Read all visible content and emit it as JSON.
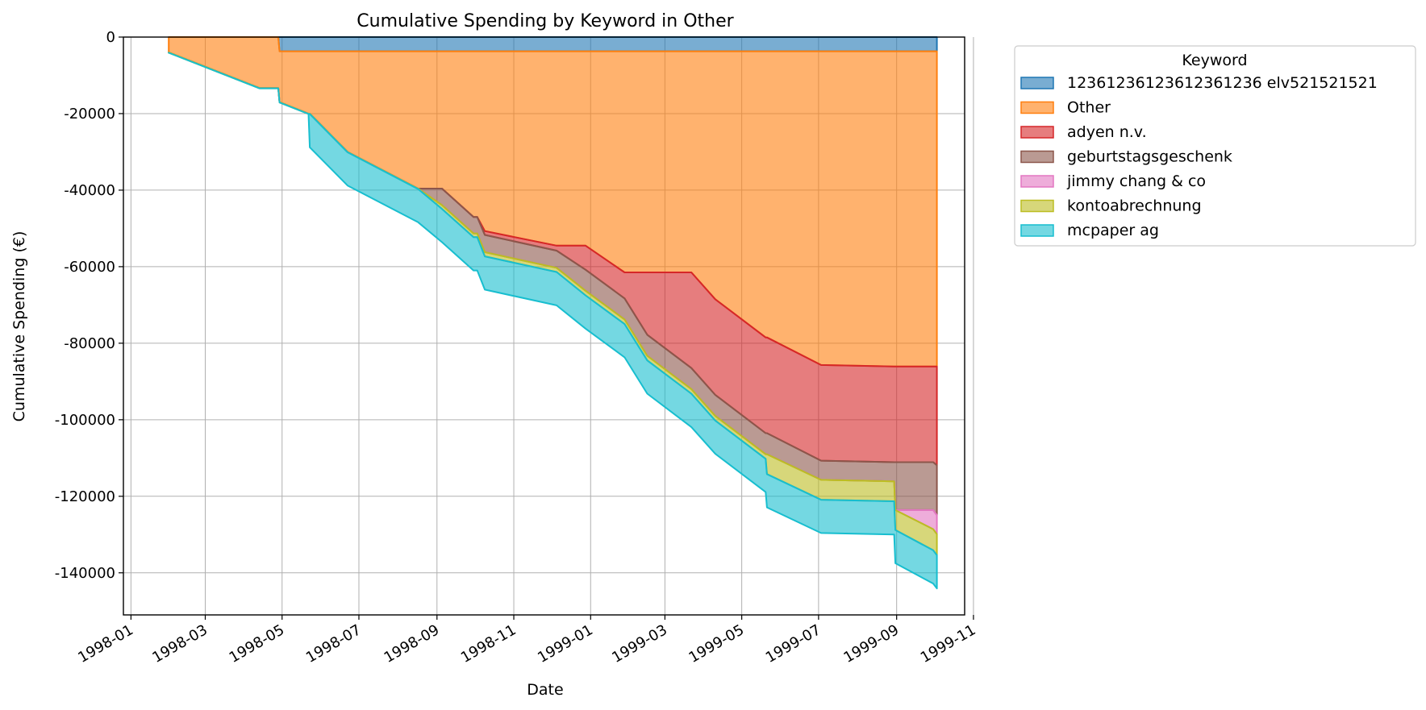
{
  "chart_data": {
    "type": "area",
    "stacked": true,
    "title": "Cumulative Spending by Keyword in Other",
    "xlabel": "Date",
    "ylabel": "Cumulative Spending (€)",
    "xlim": [
      "1997-12-26",
      "1999-10-25"
    ],
    "ylim": [
      -151000,
      0
    ],
    "grid": true,
    "x_ticks": [
      "1998-01",
      "1998-03",
      "1998-05",
      "1998-07",
      "1998-09",
      "1998-11",
      "1999-01",
      "1999-03",
      "1999-05",
      "1999-07",
      "1999-09",
      "1999-11"
    ],
    "y_ticks": [
      0,
      -20000,
      -40000,
      -60000,
      -80000,
      -100000,
      -120000,
      -140000
    ],
    "legend": {
      "title": "Keyword",
      "placement": "outside-top-right"
    },
    "x": [
      "1998-01-31",
      "1998-04-13",
      "1998-04-28",
      "1998-04-29",
      "1998-05-22",
      "1998-05-23",
      "1998-06-22",
      "1998-08-17",
      "1998-09-05",
      "1998-09-30",
      "1998-10-03",
      "1998-10-09",
      "1998-12-05",
      "1998-12-28",
      "1999-01-28",
      "1999-02-15",
      "1999-03-22",
      "1999-04-10",
      "1999-05-20",
      "1999-05-21",
      "1999-07-03",
      "1999-08-30",
      "1999-08-31",
      "1999-09-30",
      "1999-10-03"
    ],
    "series": [
      {
        "name": "12361236123612361236 elv521521521",
        "color": "#1f77b4",
        "values": [
          0,
          0,
          0,
          -3700,
          -3700,
          -3700,
          -3700,
          -3700,
          -3700,
          -3700,
          -3700,
          -3700,
          -3700,
          -3700,
          -3700,
          -3700,
          -3700,
          -3700,
          -3700,
          -3700,
          -3700,
          -3700,
          -3700,
          -3700,
          -3700
        ]
      },
      {
        "name": "Other",
        "color": "#ff7f0e",
        "values": [
          -4000,
          -13300,
          -13300,
          -13300,
          -16300,
          -16300,
          -26300,
          -35900,
          -35900,
          -43300,
          -43300,
          -47000,
          -50800,
          -50800,
          -57800,
          -57800,
          -57800,
          -64800,
          -74800,
          -74800,
          -82000,
          -82400,
          -82400,
          -82400,
          -82400
        ]
      },
      {
        "name": "adyen n.v.",
        "color": "#d62728",
        "values": [
          0,
          0,
          0,
          0,
          0,
          0,
          0,
          0,
          0,
          0,
          0,
          -1000,
          -1300,
          -6300,
          -6800,
          -16300,
          -25000,
          -25000,
          -25000,
          -25000,
          -25000,
          -25000,
          -25000,
          -25000,
          -25800
        ]
      },
      {
        "name": "geburtstagsgeschenk",
        "color": "#8c564b",
        "values": [
          0,
          0,
          0,
          0,
          0,
          0,
          0,
          0,
          -4300,
          -4300,
          -4300,
          -4500,
          -4500,
          -5500,
          -5500,
          -5500,
          -5500,
          -5500,
          -5500,
          -5500,
          -5000,
          -5000,
          -12500,
          -12500,
          -13000
        ]
      },
      {
        "name": "jimmy chang & co",
        "color": "#e377c2",
        "values": [
          0,
          0,
          0,
          0,
          0,
          0,
          0,
          0,
          0,
          0,
          0,
          0,
          0,
          0,
          0,
          0,
          0,
          0,
          0,
          0,
          0,
          0,
          0,
          -5000,
          -5000
        ]
      },
      {
        "name": "kontoabrechnung",
        "color": "#bcbd22",
        "values": [
          -100,
          -100,
          -100,
          -100,
          -100,
          -100,
          -100,
          -100,
          -1000,
          -1000,
          -1000,
          -1100,
          -1100,
          -1200,
          -1200,
          -1200,
          -1200,
          -1200,
          -1200,
          -5200,
          -5200,
          -5200,
          -5200,
          -5500,
          -5500
        ]
      },
      {
        "name": "mcpaper ag",
        "color": "#17becf",
        "values": [
          0,
          0,
          0,
          0,
          0,
          -8700,
          -8700,
          -8700,
          -8700,
          -8700,
          -8700,
          -8700,
          -8700,
          -8700,
          -8700,
          -8700,
          -8700,
          -8700,
          -8700,
          -8700,
          -8700,
          -8700,
          -8700,
          -8700,
          -8700
        ]
      }
    ]
  }
}
